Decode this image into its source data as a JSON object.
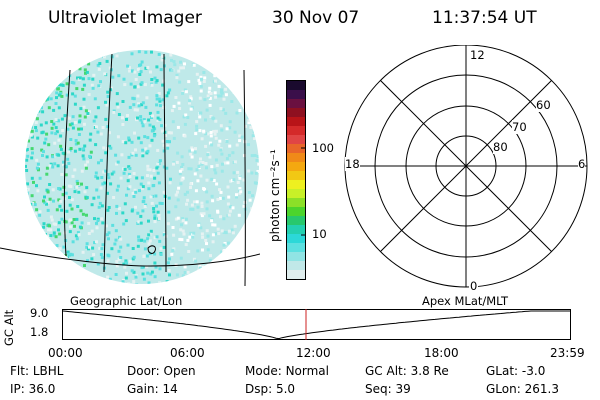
{
  "header": {
    "title": "Ultraviolet Imager",
    "date": "30 Nov 07",
    "time": "11:37:54 UT"
  },
  "colorbar": {
    "label": "photon cm⁻²s⁻¹",
    "ticks": [
      "100",
      "10"
    ],
    "colors": [
      "#1a0a2e",
      "#3a0f4a",
      "#6a1040",
      "#8e1020",
      "#b81418",
      "#d42a2a",
      "#e04545",
      "#e8662a",
      "#f08a18",
      "#f4a810",
      "#f2c814",
      "#eef020",
      "#c8f028",
      "#8ce028",
      "#4cd42c",
      "#28c86c",
      "#24d0b0",
      "#2cd8d8",
      "#5ce0e0",
      "#90e4e4",
      "#c0e8e8",
      "#e0eeee"
    ]
  },
  "polar": {
    "mlt_labels": {
      "top": "12",
      "right": "6",
      "bottom": "0",
      "left": "18"
    },
    "lat_labels": [
      "80",
      "70",
      "60"
    ]
  },
  "timeline": {
    "left_label": "Geographic Lat/Lon",
    "right_label": "Apex MLat/MLT",
    "axis_label": "GC Alt",
    "y_top": "9.0",
    "y_bottom": "1.8",
    "time_ticks": [
      "00:00",
      "06:00",
      "12:00",
      "18:00",
      "23:59"
    ]
  },
  "footer": {
    "row1": [
      {
        "label": "Flt:",
        "value": "LBHL"
      },
      {
        "label": "Door:",
        "value": "Open"
      },
      {
        "label": "Mode:",
        "value": "Normal"
      },
      {
        "label": "GC Alt:",
        "value": "3.8 Re"
      },
      {
        "label": "GLat:",
        "value": "-3.0"
      }
    ],
    "row2": [
      {
        "label": "IP:",
        "value": "36.0"
      },
      {
        "label": "Gain:",
        "value": "14"
      },
      {
        "label": "Dsp:",
        "value": "5.0"
      },
      {
        "label": "Seq:",
        "value": "39"
      },
      {
        "label": "GLon:",
        "value": "261.3"
      }
    ]
  }
}
